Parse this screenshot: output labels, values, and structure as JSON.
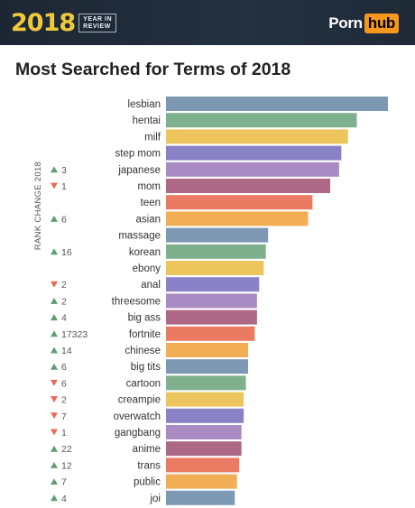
{
  "header": {
    "year": "2018",
    "year_in_review_line1": "YEAR IN",
    "year_in_review_line2": "REVIEW",
    "brand_part1": "Porn",
    "brand_part2": "hub",
    "brand_accent": "#f7971d",
    "year_color": "#f0c93a"
  },
  "chart_data": {
    "type": "bar",
    "orientation": "horizontal",
    "title": "Most Searched for Terms of 2018",
    "rank_axis_label": "RANK CHANGE 2018",
    "xlim": [
      0,
      100
    ],
    "categories": [
      "lesbian",
      "hentai",
      "milf",
      "step mom",
      "japanese",
      "mom",
      "teen",
      "asian",
      "massage",
      "korean",
      "ebony",
      "anal",
      "threesome",
      "big ass",
      "fortnite",
      "chinese",
      "big tits",
      "cartoon",
      "creampie",
      "overwatch",
      "gangbang",
      "anime",
      "trans",
      "public",
      "joi"
    ],
    "values": [
      100,
      86,
      82,
      79,
      78,
      74,
      66,
      64,
      46,
      45,
      44,
      42,
      41,
      41,
      40,
      37,
      37,
      36,
      35,
      35,
      34,
      34,
      33,
      32,
      31
    ],
    "rank_changes": [
      {
        "direction": "none",
        "text": ""
      },
      {
        "direction": "none",
        "text": ""
      },
      {
        "direction": "none",
        "text": ""
      },
      {
        "direction": "none",
        "text": ""
      },
      {
        "direction": "up",
        "text": "3"
      },
      {
        "direction": "down",
        "text": "1"
      },
      {
        "direction": "none",
        "text": ""
      },
      {
        "direction": "up",
        "text": "6"
      },
      {
        "direction": "none",
        "text": ""
      },
      {
        "direction": "up",
        "text": "16"
      },
      {
        "direction": "none",
        "text": ""
      },
      {
        "direction": "down",
        "text": "2"
      },
      {
        "direction": "up",
        "text": "2"
      },
      {
        "direction": "up",
        "text": "4"
      },
      {
        "direction": "up",
        "text": "17323"
      },
      {
        "direction": "up",
        "text": "14"
      },
      {
        "direction": "up",
        "text": "6"
      },
      {
        "direction": "down",
        "text": "6"
      },
      {
        "direction": "down",
        "text": "2"
      },
      {
        "direction": "down",
        "text": "7"
      },
      {
        "direction": "down",
        "text": "1"
      },
      {
        "direction": "up",
        "text": "22"
      },
      {
        "direction": "up",
        "text": "12"
      },
      {
        "direction": "up",
        "text": "7"
      },
      {
        "direction": "up",
        "text": "4"
      }
    ],
    "palette": [
      "#7c98b3",
      "#7fb08d",
      "#ecc65c",
      "#8a82c6",
      "#a98bc3",
      "#ad6885",
      "#eb7a62",
      "#f1ae55"
    ],
    "up_color": "#5f9f73",
    "down_color": "#ea6b55",
    "grid": false
  }
}
